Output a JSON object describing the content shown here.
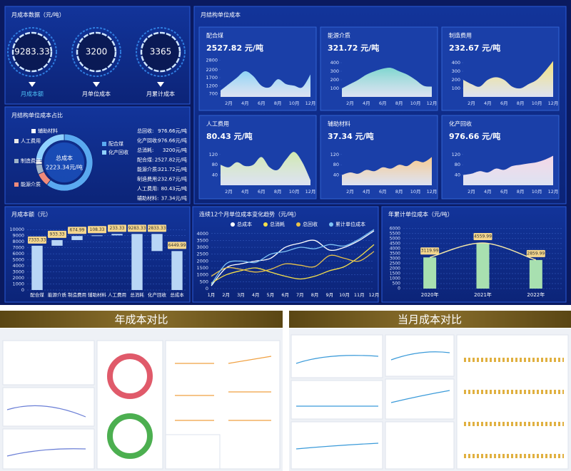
{
  "panels": {
    "gauges_title": "月成本数据（元/吨）",
    "cards_title": "月结构单位成本"
  },
  "gauges": [
    {
      "value": 9283.33,
      "label": "月成本额"
    },
    {
      "value": 3200,
      "label": "月单位成本"
    },
    {
      "value": 3365,
      "label": "月累计成本"
    }
  ],
  "summary": [
    {
      "label": "总回收:",
      "text": "976.66元/吨"
    },
    {
      "label": "化产回收:",
      "text": "976.66元/吨"
    },
    {
      "label": "总消耗:",
      "text": "3200元/吨"
    },
    {
      "label": "配合煤:",
      "text": "2527.82元/吨"
    },
    {
      "label": "能源介质:",
      "text": "321.72元/吨"
    },
    {
      "label": "制造费用:",
      "text": "232.67元/吨"
    },
    {
      "label": "人工费用:",
      "text": "80.43元/吨"
    },
    {
      "label": "辅助材料:",
      "text": "37.34元/吨"
    }
  ],
  "sections": [
    "年成本对比",
    "当月成本对比"
  ],
  "chart_data": [
    {
      "type": "area",
      "title": "配合煤",
      "value_label": "2527.82 元/吨",
      "color": "#8fd3f4",
      "categories": [
        null,
        "2月",
        null,
        "4月",
        null,
        "6月",
        null,
        "8月",
        null,
        "10月",
        null,
        "12月"
      ],
      "values": [
        900,
        1300,
        1700,
        2100,
        1800,
        1200,
        1100,
        1600,
        1300,
        1200,
        1100,
        1900
      ],
      "ylim": [
        500,
        2900
      ],
      "yticks": [
        700,
        1200,
        1700,
        2200,
        2800
      ]
    },
    {
      "type": "area",
      "title": "能源介质",
      "value_label": "321.72 元/吨",
      "color": "#7fd6cf",
      "categories": [
        null,
        "2月",
        null,
        "4月",
        null,
        "6月",
        null,
        "8月",
        null,
        "10月",
        null,
        "12月"
      ],
      "values": [
        100,
        150,
        200,
        260,
        300,
        330,
        340,
        300,
        260,
        200,
        130,
        120
      ],
      "ylim": [
        0,
        450
      ],
      "yticks": [
        100,
        200,
        300,
        400
      ]
    },
    {
      "type": "area",
      "title": "制造费用",
      "value_label": "232.67 元/吨",
      "color": "#f3e27a",
      "categories": [
        null,
        "2月",
        null,
        "4月",
        null,
        "6月",
        null,
        "8月",
        null,
        "10月",
        null,
        "12月"
      ],
      "values": [
        200,
        150,
        120,
        200,
        230,
        200,
        120,
        100,
        150,
        200,
        300,
        420
      ],
      "ylim": [
        0,
        450
      ],
      "yticks": [
        100,
        200,
        300,
        400
      ]
    },
    {
      "type": "area",
      "title": "人工费用",
      "value_label": "80.43 元/吨",
      "color": "#cfe8b0",
      "categories": [
        null,
        "2月",
        null,
        "4月",
        null,
        "6月",
        null,
        "8月",
        null,
        "10月",
        null,
        "12月"
      ],
      "values": [
        80,
        70,
        90,
        75,
        80,
        110,
        70,
        60,
        100,
        130,
        90,
        20
      ],
      "ylim": [
        0,
        150
      ],
      "yticks": [
        40,
        80,
        120
      ]
    },
    {
      "type": "area",
      "title": "辅助材料",
      "value_label": "37.34 元/吨",
      "color": "#f7c98f",
      "categories": [
        null,
        "2月",
        null,
        "4月",
        null,
        "6月",
        null,
        "8月",
        null,
        "10月",
        null,
        "12月"
      ],
      "values": [
        40,
        50,
        45,
        60,
        55,
        70,
        65,
        80,
        75,
        95,
        90,
        110
      ],
      "ylim": [
        0,
        150
      ],
      "yticks": [
        40,
        80,
        120
      ]
    },
    {
      "type": "area",
      "title": "化产回收",
      "value_label": "976.66 元/吨",
      "color": "#f4d6e6",
      "categories": [
        null,
        "2月",
        null,
        "4月",
        null,
        "6月",
        null,
        "8月",
        null,
        "10月",
        null,
        "12月"
      ],
      "values": [
        40,
        45,
        55,
        50,
        65,
        60,
        75,
        80,
        85,
        90,
        100,
        115
      ],
      "ylim": [
        0,
        150
      ],
      "yticks": [
        40,
        80,
        120
      ]
    },
    {
      "type": "pie",
      "title": "月结构单位成本占比",
      "center_title": "总成本",
      "center_label": "2223.34元/吨",
      "categories": [
        "配合煤",
        "能源介质",
        "制造费用",
        "人工费用",
        "辅助材料",
        "化产回收"
      ],
      "values": [
        2527.82,
        321.72,
        232.67,
        80.43,
        37.34,
        976.66
      ],
      "colors": [
        "#5aa9f0",
        "#f08a7a",
        "#9fb3c8",
        "#e8e8e8",
        "#ffffff",
        "#8fd0ff"
      ]
    },
    {
      "type": "waterfall",
      "title": "月成本额（元）",
      "color": "#b8d6f6",
      "categories": [
        "配合煤",
        "能源介质",
        "制造费用",
        "辅助材料",
        "人工费用",
        "总消耗",
        "化产回收",
        "总成本"
      ],
      "values": [
        7333.33,
        933.33,
        674.99,
        108.33,
        233.33,
        9283.33,
        2833.33,
        6449.99
      ],
      "ylim": [
        0,
        10500
      ],
      "yticks": [
        0,
        1000,
        2000,
        3000,
        4000,
        5000,
        6000,
        7000,
        8000,
        9000,
        10000
      ]
    },
    {
      "type": "line",
      "title": "连续12个月单位成本变化趋势（元/吨）",
      "categories": [
        "1月",
        "2月",
        "3月",
        "4月",
        "5月",
        "6月",
        "7月",
        "8月",
        "9月",
        "10月",
        "11月",
        "12月"
      ],
      "series": [
        {
          "name": "总成本",
          "color": "#ffffff",
          "values": [
            200,
            1500,
            1800,
            2000,
            2200,
            3000,
            3300,
            3500,
            2800,
            3000,
            3500,
            4200
          ]
        },
        {
          "name": "总消耗",
          "color": "#f5e04a",
          "values": [
            400,
            1000,
            1300,
            1500,
            1200,
            900,
            700,
            900,
            1300,
            1600,
            2300,
            3200
          ]
        },
        {
          "name": "总回收",
          "color": "#e8c24a",
          "values": [
            900,
            1500,
            1400,
            1200,
            1400,
            1800,
            1700,
            1600,
            2400,
            2200,
            2000,
            2700
          ]
        },
        {
          "name": "累计单位成本",
          "color": "#7fc4f5",
          "values": [
            300,
            1800,
            2000,
            1900,
            2500,
            2700,
            3000,
            2900,
            3200,
            3100,
            3600,
            4300
          ]
        }
      ],
      "ylim": [
        0,
        4300
      ],
      "yticks": [
        0,
        500,
        1000,
        1500,
        2000,
        2500,
        3000,
        3500,
        4000
      ]
    },
    {
      "type": "bar_line",
      "title": "年累计单位成本（元/吨）",
      "color": "#a8e0b0",
      "line_color": "#f3e6a6",
      "categories": [
        "2020年",
        "2021年",
        "2022年"
      ],
      "values": [
        3119.99,
        4559.99,
        2859.99
      ],
      "ylim": [
        0,
        6200
      ],
      "yticks": [
        0,
        500,
        1000,
        1500,
        2000,
        2500,
        3000,
        3500,
        4000,
        4500,
        5000,
        5500,
        6000
      ]
    }
  ]
}
